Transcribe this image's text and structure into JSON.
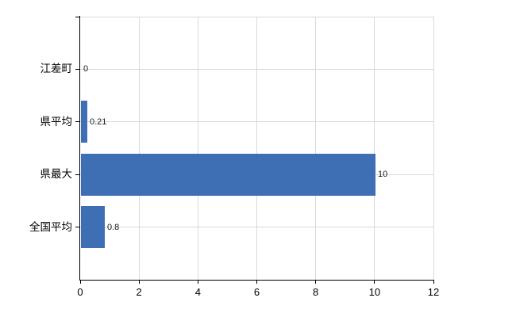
{
  "chart_data": {
    "type": "bar",
    "orientation": "horizontal",
    "title": "",
    "xlabel": "",
    "ylabel": "",
    "categories": [
      "江差町",
      "県平均",
      "県最大",
      "全国平均"
    ],
    "values": [
      0,
      0.21,
      10,
      0.8
    ],
    "value_labels": [
      "0",
      "0.21",
      "10",
      "0.8"
    ],
    "xlim": [
      0,
      12
    ],
    "x_ticks": [
      0,
      2,
      4,
      6,
      8,
      10,
      12
    ],
    "x_tick_labels": [
      "0",
      "2",
      "4",
      "6",
      "8",
      "10",
      "12"
    ],
    "grid": true,
    "legend": false,
    "bar_color": "#3E6EB4",
    "grid_color": "#D9D9D9",
    "axis_color": "#000000",
    "text_color": "#000000",
    "value_label_color": "#1A1A1A",
    "background_color": "#FFFFFF"
  }
}
